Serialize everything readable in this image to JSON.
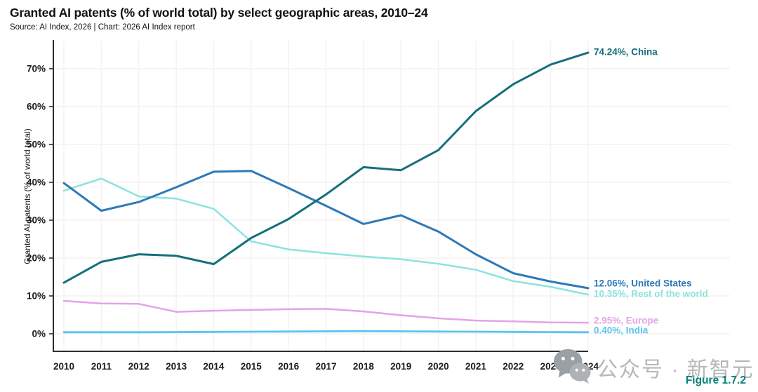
{
  "header": {
    "title": "Granted AI patents (% of world total) by select geographic areas, 2010–24",
    "source": "Source: AI Index, 2026 | Chart: 2026 AI Index report"
  },
  "footer": {
    "figure_label": "Figure 1.7.2",
    "watermark_text": "公众号 · 新智元",
    "watermark_icon": "wechat-icon"
  },
  "colors": {
    "axis": "#2f2f2f",
    "grid": "#f6f1f1",
    "tick_text": "#1c1c1c",
    "figure_label": "#00837a",
    "watermark_gray": "#9aa0a3"
  },
  "chart_data": {
    "type": "line",
    "title": "Granted AI patents (% of world total) by select geographic areas, 2010–24",
    "xlabel": "",
    "ylabel": "Granted AI patents (% of world total)",
    "x": [
      2010,
      2011,
      2012,
      2013,
      2014,
      2015,
      2016,
      2017,
      2018,
      2019,
      2020,
      2021,
      2022,
      2023,
      2024
    ],
    "ylim": [
      0,
      78
    ],
    "yticks": [
      0,
      10,
      20,
      30,
      40,
      50,
      60,
      70
    ],
    "ytick_labels": [
      "0%",
      "10%",
      "20%",
      "30%",
      "40%",
      "50%",
      "60%",
      "70%"
    ],
    "grid": true,
    "legend_position": "right-end-labels",
    "series": [
      {
        "name": "Rest of the world",
        "color": "#8ae4de",
        "end_label": "10.35%, Rest of the world",
        "values": [
          37.8,
          41.0,
          36.3,
          35.7,
          33.0,
          24.4,
          22.3,
          21.3,
          20.4,
          19.7,
          18.5,
          16.9,
          13.9,
          12.4,
          10.35
        ]
      },
      {
        "name": "Europe",
        "color": "#e3a3e8",
        "end_label": "2.95%, Europe",
        "values": [
          8.7,
          8.0,
          7.9,
          5.8,
          6.1,
          6.3,
          6.5,
          6.6,
          5.9,
          4.9,
          4.1,
          3.5,
          3.3,
          3.0,
          2.95
        ]
      },
      {
        "name": "India",
        "color": "#58c5ef",
        "end_label": "0.40%, India",
        "values": [
          0.4,
          0.4,
          0.4,
          0.45,
          0.5,
          0.55,
          0.6,
          0.65,
          0.7,
          0.65,
          0.6,
          0.55,
          0.5,
          0.45,
          0.4
        ]
      },
      {
        "name": "United States",
        "color": "#2d79ba",
        "end_label": "12.06%, United States",
        "values": [
          39.8,
          32.5,
          34.8,
          38.7,
          42.8,
          43.0,
          38.5,
          33.8,
          29.0,
          31.3,
          27.0,
          21.0,
          16.0,
          13.8,
          12.06
        ]
      },
      {
        "name": "China",
        "color": "#166f7b",
        "end_label": "74.24%, China",
        "values": [
          13.5,
          19.0,
          21.0,
          20.6,
          18.4,
          25.3,
          30.3,
          36.8,
          44.0,
          43.2,
          48.5,
          58.8,
          65.9,
          71.1,
          74.24
        ]
      }
    ]
  }
}
